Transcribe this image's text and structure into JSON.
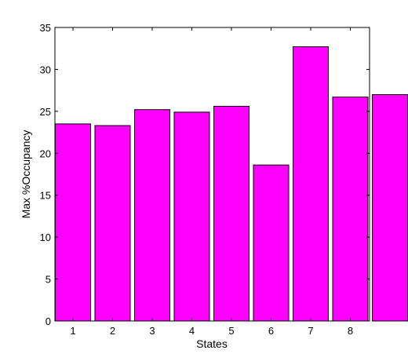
{
  "chart_data": {
    "type": "bar",
    "categories": [
      "1",
      "2",
      "3",
      "4",
      "5",
      "6",
      "7",
      "8",
      ""
    ],
    "values": [
      23.5,
      23.3,
      25.2,
      24.9,
      25.6,
      18.6,
      32.7,
      26.7,
      27.0
    ],
    "title": "",
    "xlabel": "States",
    "ylabel": "Max %Occupancy",
    "ylim": [
      0,
      35
    ],
    "yticks": [
      0,
      5,
      10,
      15,
      20,
      25,
      30,
      35
    ],
    "grid": false,
    "bar_color": "#ff00ff",
    "edge_color": "#000000"
  }
}
